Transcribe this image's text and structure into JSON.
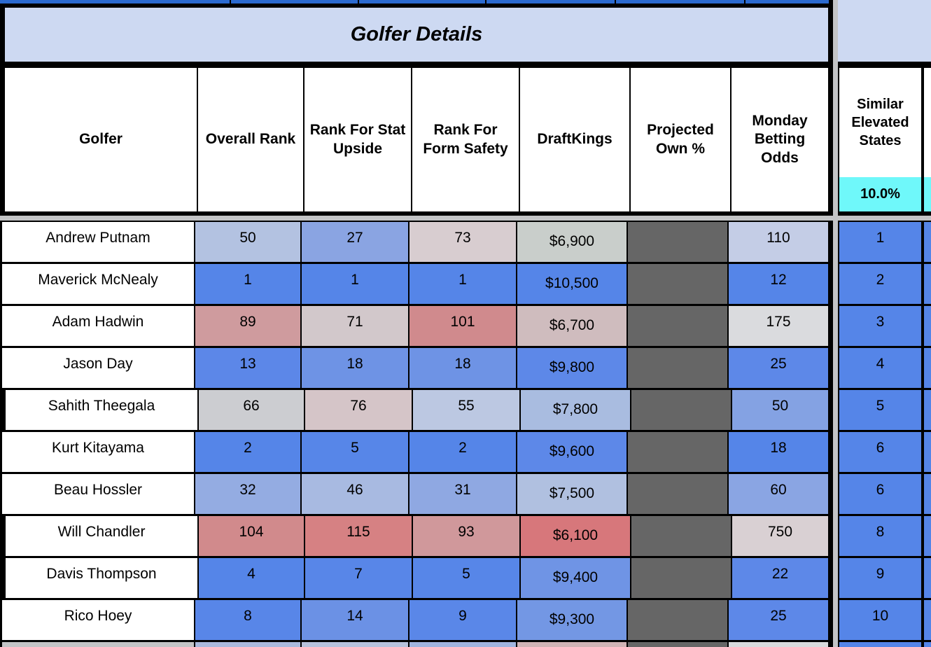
{
  "banner": {
    "title": "Golfer Details"
  },
  "columns": [
    "Golfer",
    "Overall Rank",
    "Rank For Stat Upside",
    "Rank For Form Safety",
    "DraftKings",
    "Projected Own %",
    "Monday Betting Odds"
  ],
  "similar_column": {
    "header": "Similar Elevated States",
    "threshold": "10.0%",
    "threshold_bg": "#6ff8fa",
    "value_bg": "#5585e8"
  },
  "colors": {
    "banner_bg": "#cdd9f2",
    "page_gap": "#c3c4c6",
    "hidden_own_bg": "#666666",
    "top_strip_blue": "#2b6ad0",
    "strong_blue": "#5585e8",
    "strong_red": "#d68183"
  },
  "rows": [
    {
      "golfer": "Andrew Putnam",
      "overall": {
        "v": "50",
        "bg": "#b3c2e1"
      },
      "stat": {
        "v": "27",
        "bg": "#8aa4e2"
      },
      "form": {
        "v": "73",
        "bg": "#d8cdd0"
      },
      "dk": {
        "v": "$6,900",
        "bg": "#c9cecb"
      },
      "odds": {
        "v": "110",
        "bg": "#c4cde6"
      },
      "sim": {
        "v": "1",
        "bg": "#5585e8"
      }
    },
    {
      "golfer": "Maverick McNealy",
      "overall": {
        "v": "1",
        "bg": "#5585e8"
      },
      "stat": {
        "v": "1",
        "bg": "#5585e8"
      },
      "form": {
        "v": "1",
        "bg": "#5585e8"
      },
      "dk": {
        "v": "$10,500",
        "bg": "#5585e8"
      },
      "odds": {
        "v": "12",
        "bg": "#5585e8"
      },
      "sim": {
        "v": "2",
        "bg": "#5585e8"
      }
    },
    {
      "golfer": "Adam Hadwin",
      "overall": {
        "v": "89",
        "bg": "#cf9b9e"
      },
      "stat": {
        "v": "71",
        "bg": "#d2c8cb"
      },
      "form": {
        "v": "101",
        "bg": "#d08a8d"
      },
      "dk": {
        "v": "$6,700",
        "bg": "#cfbcbe"
      },
      "odds": {
        "v": "175",
        "bg": "#dadbde"
      },
      "sim": {
        "v": "3",
        "bg": "#5585e8"
      }
    },
    {
      "golfer": "Jason Day",
      "overall": {
        "v": "13",
        "bg": "#5c87e8"
      },
      "stat": {
        "v": "18",
        "bg": "#6e93e5"
      },
      "form": {
        "v": "18",
        "bg": "#6e93e5"
      },
      "dk": {
        "v": "$9,800",
        "bg": "#5d88e8"
      },
      "odds": {
        "v": "25",
        "bg": "#5d88e8"
      },
      "sim": {
        "v": "4",
        "bg": "#5585e8"
      }
    },
    {
      "golfer": "Sahith Theegala",
      "overall": {
        "v": "66",
        "bg": "#cccdd1"
      },
      "stat": {
        "v": "76",
        "bg": "#d5c5c8"
      },
      "form": {
        "v": "55",
        "bg": "#bcc8e2"
      },
      "dk": {
        "v": "$7,800",
        "bg": "#a9bce0"
      },
      "odds": {
        "v": "50",
        "bg": "#84a2e3"
      },
      "sim": {
        "v": "5",
        "bg": "#5585e8"
      }
    },
    {
      "golfer": "Kurt Kitayama",
      "overall": {
        "v": "2",
        "bg": "#5585e8"
      },
      "stat": {
        "v": "5",
        "bg": "#5786e8"
      },
      "form": {
        "v": "2",
        "bg": "#5585e8"
      },
      "dk": {
        "v": "$9,600",
        "bg": "#5d88e8"
      },
      "odds": {
        "v": "18",
        "bg": "#5585e8"
      },
      "sim": {
        "v": "6",
        "bg": "#5585e8"
      }
    },
    {
      "golfer": "Beau Hossler",
      "overall": {
        "v": "32",
        "bg": "#94ace2"
      },
      "stat": {
        "v": "46",
        "bg": "#a8bae1"
      },
      "form": {
        "v": "31",
        "bg": "#8fa8e2"
      },
      "dk": {
        "v": "$7,500",
        "bg": "#b0c0e0"
      },
      "odds": {
        "v": "60",
        "bg": "#8aa5e3"
      },
      "sim": {
        "v": "6",
        "bg": "#5585e8"
      }
    },
    {
      "golfer": "Will Chandler",
      "overall": {
        "v": "104",
        "bg": "#d18a8c"
      },
      "stat": {
        "v": "115",
        "bg": "#d68183"
      },
      "form": {
        "v": "93",
        "bg": "#d0989b"
      },
      "dk": {
        "v": "$6,100",
        "bg": "#d7777b"
      },
      "odds": {
        "v": "750",
        "bg": "#d9d0d3"
      },
      "sim": {
        "v": "8",
        "bg": "#5585e8"
      }
    },
    {
      "golfer": "Davis Thompson",
      "overall": {
        "v": "4",
        "bg": "#5585e8"
      },
      "stat": {
        "v": "7",
        "bg": "#5886e8"
      },
      "form": {
        "v": "5",
        "bg": "#5786e8"
      },
      "dk": {
        "v": "$9,400",
        "bg": "#6f94e5"
      },
      "odds": {
        "v": "22",
        "bg": "#5d88e8"
      },
      "sim": {
        "v": "9",
        "bg": "#5585e8"
      }
    },
    {
      "golfer": "Rico Hoey",
      "overall": {
        "v": "8",
        "bg": "#5886e8"
      },
      "stat": {
        "v": "14",
        "bg": "#6b91e5"
      },
      "form": {
        "v": "9",
        "bg": "#5a87e8"
      },
      "dk": {
        "v": "$9,300",
        "bg": "#7397e4"
      },
      "odds": {
        "v": "25",
        "bg": "#5d88e8"
      },
      "sim": {
        "v": "10",
        "bg": "#5585e8"
      }
    }
  ],
  "partial_row_bgs": {
    "overall": "#aab9dc",
    "stat": "#b7c2dc",
    "form": "#a0b4de",
    "dk": "#d0b3b5",
    "own": "#666666",
    "odds": "#d8dadc",
    "sim": "#5585e8"
  },
  "layout_hints": {
    "thick_left_rows": [
      4,
      7,
      8
    ]
  }
}
